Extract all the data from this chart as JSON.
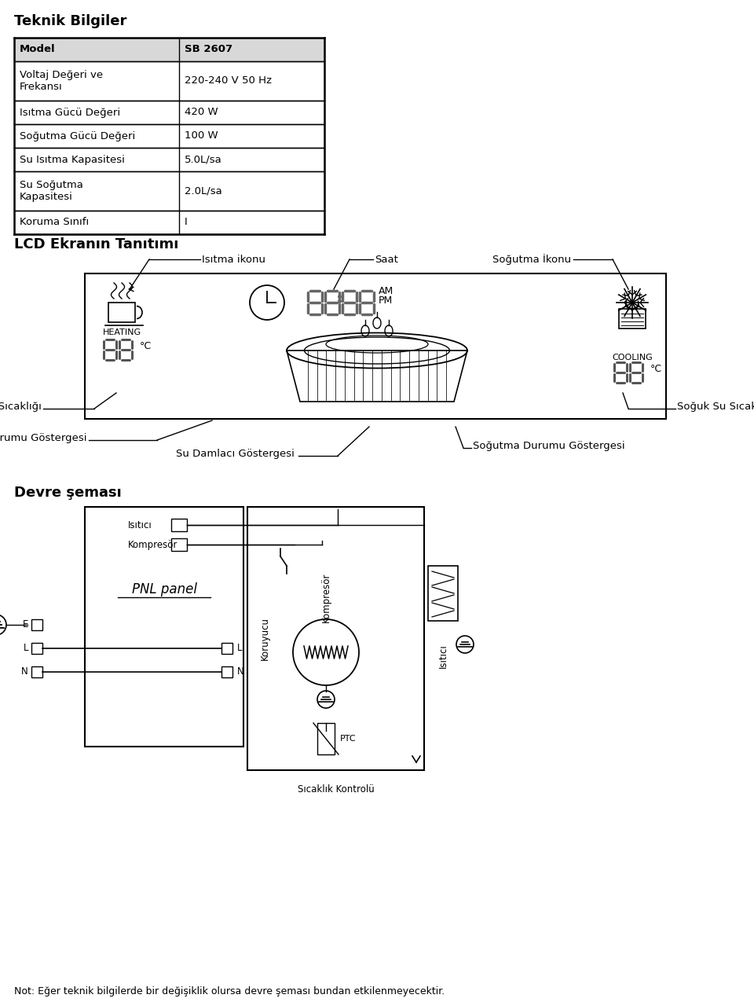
{
  "title_teknik": "Teknik Bilgiler",
  "table_headers": [
    "Model",
    "SB 2607"
  ],
  "table_rows": [
    [
      "Voltaj Değeri ve\nFrekansı",
      "220-240 V 50 Hz"
    ],
    [
      "Isıtma Gücü Değeri",
      "420 W"
    ],
    [
      "Soğutma Gücü Değeri",
      "100 W"
    ],
    [
      "Su Isıtma Kapasitesi",
      "5.0L/sa"
    ],
    [
      "Su Soğutma\nKapasitesi",
      "2.0L/sa"
    ],
    [
      "Koruma Sınıfı",
      "I"
    ]
  ],
  "title_lcd": "LCD Ekranın Tanıtımı",
  "label_isitma_ikonu": "Isıtma ikonu",
  "label_saat": "Saat",
  "label_sogutma_ikonu": "Soğutma İkonu",
  "label_sicak_su": "Sıcak Su Sıcaklığı",
  "label_soguk_su": "Soğuk Su Sıcaklığı",
  "label_isitma_durumu": "Isıtma Durumu Göstergesi",
  "label_sogutma_durumu": "Soğutma Durumu Göstergesi",
  "label_su_damlasi": "Su Damlасı Göstergesi",
  "title_devre": "Devre şeması",
  "label_isitici_top": "Isıtıcı",
  "label_kompresor_top": "Kompresör",
  "label_pnl": "PNL panel",
  "label_koruyucu": "Koruyucu",
  "label_kompresor_vert": "Kompresör",
  "label_isitici_vert": "Isıtıcı",
  "label_ptc": "PTC",
  "label_sicaklik": "Sıcaklık Kontrolü",
  "label_e": "E",
  "label_l": "L",
  "label_n": "N",
  "note": "Not: Eğer teknik bilgilerde bir değişiklik olursa devre şeması bundan etkilenmeyecektir.",
  "bg_color": "#ffffff",
  "text_color": "#000000",
  "line_color": "#000000"
}
